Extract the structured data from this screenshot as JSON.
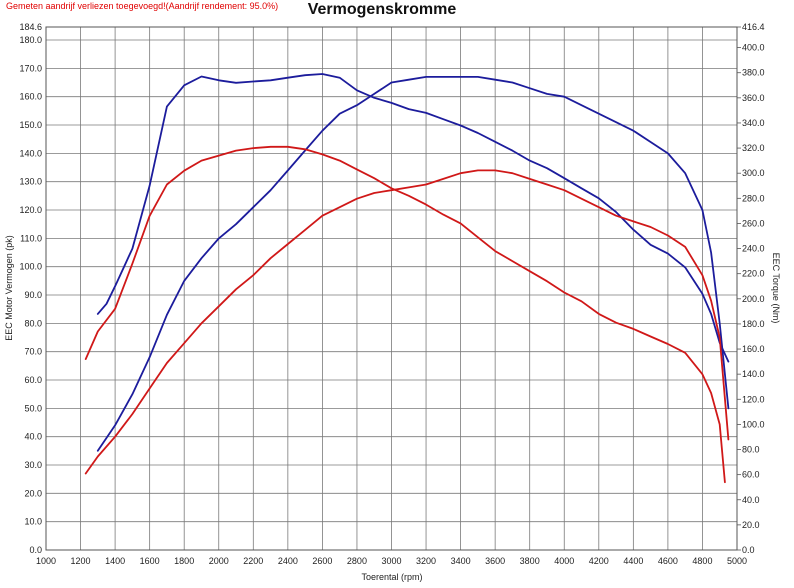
{
  "header": {
    "note": "Gemeten aandrijf verliezen toegevoegd!(Aandrijf rendement: 95.0%)",
    "title": "Vermogenskromme"
  },
  "colors": {
    "before": "#1c1c9c",
    "after": "#d01818",
    "grid": "#7a7a7a",
    "background": "#ffffff"
  },
  "chart_data": {
    "type": "line",
    "title": "Vermogenskromme",
    "xlabel": "Toerental (rpm)",
    "ylabel_left": "EEC Motor Vermogen (pk)",
    "ylabel_right": "EEC Torque (Nm)",
    "xlim": [
      1000,
      5000
    ],
    "ylim_left": [
      0,
      184.6
    ],
    "ylim_right": [
      0,
      416.4
    ],
    "grid": true,
    "x_ticks": [
      "1000",
      "1200",
      "1400",
      "1600",
      "1800",
      "2000",
      "2200",
      "2400",
      "2600",
      "2800",
      "3000",
      "3200",
      "3400",
      "3600",
      "3800",
      "4000",
      "4200",
      "4400",
      "4600",
      "4800",
      "5000"
    ],
    "y_ticks_left": [
      "0.0",
      "10.0",
      "20.0",
      "30.0",
      "40.0",
      "50.0",
      "60.0",
      "70.0",
      "80.0",
      "90.0",
      "100.0",
      "110.0",
      "120.0",
      "130.0",
      "140.0",
      "150.0",
      "160.0",
      "170.0",
      "180.0",
      "184.6"
    ],
    "y_ticks_right": [
      "0.0",
      "20.0",
      "40.0",
      "60.0",
      "80.0",
      "100.0",
      "120.0",
      "140.0",
      "160.0",
      "180.0",
      "200.0",
      "220.0",
      "240.0",
      "260.0",
      "280.0",
      "300.0",
      "320.0",
      "340.0",
      "360.0",
      "380.0",
      "400.0",
      "416.4"
    ],
    "series": [
      {
        "axis": "left",
        "color": "#1c1c9c",
        "x": [
          1300,
          1400,
          1500,
          1600,
          1700,
          1800,
          1900,
          2000,
          2100,
          2200,
          2300,
          2400,
          2500,
          2600,
          2700,
          2800,
          2900,
          3000,
          3100,
          3200,
          3300,
          3400,
          3500,
          3600,
          3700,
          3800,
          3900,
          4000,
          4100,
          4200,
          4300,
          4400,
          4500,
          4600,
          4700,
          4800,
          4850,
          4900,
          4950
        ],
        "y": [
          35,
          44,
          55,
          68,
          83,
          95,
          103,
          110,
          115,
          121,
          127,
          134,
          141,
          148,
          154,
          157,
          161,
          165,
          166,
          167,
          167,
          167,
          167,
          166,
          165,
          163,
          161,
          160,
          157,
          154,
          151,
          148,
          144,
          140,
          133,
          120,
          105,
          80,
          50
        ]
      },
      {
        "axis": "right",
        "color": "#1c1c9c",
        "x": [
          1300,
          1350,
          1400,
          1500,
          1600,
          1700,
          1800,
          1900,
          2000,
          2100,
          2200,
          2300,
          2400,
          2500,
          2600,
          2700,
          2800,
          2900,
          3000,
          3100,
          3200,
          3300,
          3400,
          3500,
          3600,
          3700,
          3800,
          3900,
          4000,
          4100,
          4200,
          4300,
          4400,
          4500,
          4600,
          4700,
          4800,
          4850,
          4900,
          4950
        ],
        "y": [
          188,
          196,
          210,
          240,
          290,
          353,
          370,
          377,
          374,
          372,
          373,
          374,
          376,
          378,
          379,
          376,
          366,
          360,
          356,
          351,
          348,
          343,
          338,
          332,
          325,
          318,
          310,
          304,
          296,
          288,
          280,
          269,
          255,
          243,
          236,
          225,
          204,
          188,
          165,
          150
        ]
      },
      {
        "axis": "left",
        "color": "#d01818",
        "x": [
          1230,
          1300,
          1400,
          1500,
          1600,
          1700,
          1800,
          1900,
          2000,
          2100,
          2200,
          2300,
          2400,
          2500,
          2600,
          2700,
          2800,
          2900,
          3000,
          3100,
          3200,
          3300,
          3400,
          3500,
          3600,
          3700,
          3800,
          3900,
          4000,
          4100,
          4200,
          4300,
          4400,
          4500,
          4600,
          4700,
          4800,
          4850,
          4900,
          4950
        ],
        "y": [
          27,
          33,
          40,
          48,
          57,
          66,
          73,
          80,
          86,
          92,
          97,
          103,
          108,
          113,
          118,
          121,
          124,
          126,
          127,
          128,
          129,
          131,
          133,
          134,
          134,
          133,
          131,
          129,
          127,
          124,
          121,
          118,
          116,
          114,
          111,
          107,
          97,
          88,
          75,
          39
        ]
      },
      {
        "axis": "right",
        "color": "#d01818",
        "x": [
          1230,
          1300,
          1400,
          1500,
          1600,
          1700,
          1800,
          1900,
          2000,
          2100,
          2200,
          2300,
          2400,
          2500,
          2600,
          2700,
          2800,
          2900,
          3000,
          3100,
          3200,
          3300,
          3400,
          3500,
          3600,
          3700,
          3800,
          3900,
          4000,
          4100,
          4200,
          4300,
          4400,
          4500,
          4600,
          4700,
          4800,
          4850,
          4900,
          4930
        ],
        "y": [
          152,
          174,
          192,
          228,
          266,
          291,
          302,
          310,
          314,
          318,
          320,
          321,
          321,
          319,
          315,
          310,
          303,
          296,
          288,
          282,
          275,
          267,
          260,
          249,
          238,
          230,
          222,
          214,
          205,
          198,
          188,
          181,
          176,
          170,
          164,
          157,
          140,
          125,
          100,
          54
        ]
      }
    ]
  }
}
